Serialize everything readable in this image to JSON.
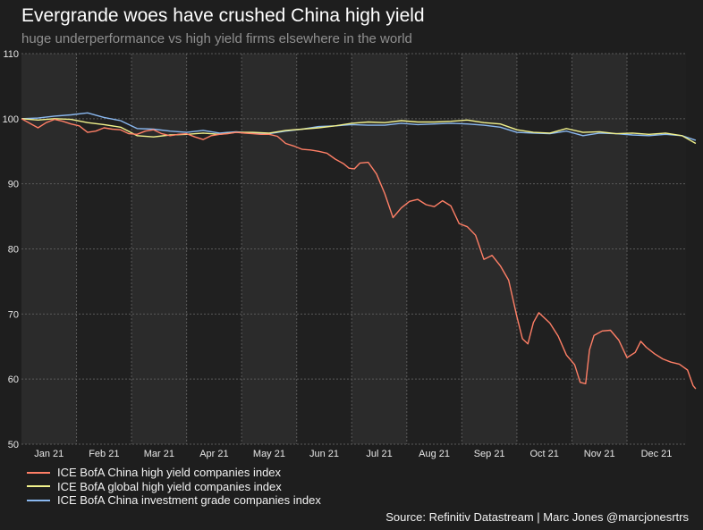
{
  "header": {
    "title": "Evergrande woes have crushed China high yield",
    "subtitle": "huge underperformance vs high yield firms elsewhere in the world"
  },
  "source": "Source: Refinitiv Datastream | Marc Jones @marcjonesrtrs",
  "colors": {
    "background": "#1e1e1e",
    "plot_band_a": "#2b2b2b",
    "plot_band_b": "#202020",
    "grid": "#5a5a5a"
  },
  "chart_data": {
    "type": "line",
    "title": "Evergrande woes have crushed China high yield",
    "subtitle": "huge underperformance vs high yield firms elsewhere in the world",
    "xlabel": "",
    "ylabel": "",
    "ylim": [
      50,
      110
    ],
    "yticks": [
      50,
      60,
      70,
      80,
      90,
      100,
      110
    ],
    "xlim": [
      0,
      12
    ],
    "month_labels": [
      "Jan 21",
      "Feb 21",
      "Mar 21",
      "Apr 21",
      "May 21",
      "Jun 21",
      "Jul 21",
      "Aug 21",
      "Sep 21",
      "Oct 21",
      "Nov 21",
      "Dec 21"
    ],
    "grid": true,
    "legend_position": "bottom-left",
    "x_note": "x values are months elapsed since start of Jan 2021",
    "series": [
      {
        "name": "ICE BofA China high yield companies index",
        "color": "#ff7f66",
        "points": [
          [
            0,
            100
          ],
          [
            0.15,
            99.3
          ],
          [
            0.3,
            98.6
          ],
          [
            0.45,
            99.4
          ],
          [
            0.6,
            99.9
          ],
          [
            0.75,
            99.6
          ],
          [
            0.9,
            99.2
          ],
          [
            1.05,
            98.9
          ],
          [
            1.2,
            97.9
          ],
          [
            1.35,
            98.1
          ],
          [
            1.5,
            98.6
          ],
          [
            1.65,
            98.4
          ],
          [
            1.8,
            98.3
          ],
          [
            1.95,
            97.7
          ],
          [
            2.1,
            97.6
          ],
          [
            2.25,
            98.1
          ],
          [
            2.4,
            98.3
          ],
          [
            2.55,
            97.7
          ],
          [
            2.7,
            97.4
          ],
          [
            2.85,
            97.6
          ],
          [
            3.0,
            97.7
          ],
          [
            3.15,
            97.2
          ],
          [
            3.3,
            96.8
          ],
          [
            3.45,
            97.4
          ],
          [
            3.6,
            97.6
          ],
          [
            3.75,
            97.7
          ],
          [
            3.9,
            97.9
          ],
          [
            4.05,
            97.8
          ],
          [
            4.2,
            97.7
          ],
          [
            4.35,
            97.6
          ],
          [
            4.5,
            97.6
          ],
          [
            4.65,
            97.3
          ],
          [
            4.8,
            96.2
          ],
          [
            4.95,
            95.8
          ],
          [
            5.1,
            95.3
          ],
          [
            5.25,
            95.2
          ],
          [
            5.4,
            95.0
          ],
          [
            5.55,
            94.7
          ],
          [
            5.7,
            93.8
          ],
          [
            5.85,
            93.1
          ],
          [
            5.95,
            92.4
          ],
          [
            6.05,
            92.3
          ],
          [
            6.15,
            93.2
          ],
          [
            6.3,
            93.3
          ],
          [
            6.45,
            91.5
          ],
          [
            6.6,
            88.5
          ],
          [
            6.75,
            84.8
          ],
          [
            6.9,
            86.3
          ],
          [
            7.05,
            87.3
          ],
          [
            7.2,
            87.6
          ],
          [
            7.35,
            86.8
          ],
          [
            7.5,
            86.5
          ],
          [
            7.65,
            87.4
          ],
          [
            7.8,
            86.6
          ],
          [
            7.95,
            83.9
          ],
          [
            8.1,
            83.4
          ],
          [
            8.25,
            82.1
          ],
          [
            8.4,
            78.4
          ],
          [
            8.55,
            79.0
          ],
          [
            8.7,
            77.4
          ],
          [
            8.85,
            75.2
          ],
          [
            9.0,
            69.6
          ],
          [
            9.1,
            66.2
          ],
          [
            9.2,
            65.4
          ],
          [
            9.3,
            68.7
          ],
          [
            9.4,
            70.2
          ],
          [
            9.5,
            69.4
          ],
          [
            9.6,
            68.6
          ],
          [
            9.75,
            66.6
          ],
          [
            9.9,
            63.7
          ],
          [
            10.05,
            62.2
          ],
          [
            10.15,
            59.5
          ],
          [
            10.25,
            59.3
          ],
          [
            10.32,
            64.5
          ],
          [
            10.4,
            66.7
          ],
          [
            10.55,
            67.4
          ],
          [
            10.7,
            67.5
          ],
          [
            10.85,
            66.0
          ],
          [
            11.0,
            63.3
          ],
          [
            11.15,
            64.1
          ],
          [
            11.25,
            65.8
          ],
          [
            11.35,
            64.9
          ],
          [
            11.5,
            63.9
          ],
          [
            11.65,
            63.1
          ],
          [
            11.8,
            62.6
          ],
          [
            11.95,
            62.3
          ],
          [
            12.1,
            61.4
          ],
          [
            12.2,
            59.0
          ],
          [
            12.25,
            58.5
          ]
        ]
      },
      {
        "name": "ICE BofA global high yield companies index",
        "color": "#f2f28c",
        "points": [
          [
            0,
            100
          ],
          [
            0.3,
            99.8
          ],
          [
            0.6,
            100.0
          ],
          [
            0.9,
            99.9
          ],
          [
            1.2,
            99.4
          ],
          [
            1.5,
            99.1
          ],
          [
            1.8,
            98.7
          ],
          [
            2.1,
            97.4
          ],
          [
            2.4,
            97.2
          ],
          [
            2.7,
            97.5
          ],
          [
            3.0,
            97.6
          ],
          [
            3.3,
            97.8
          ],
          [
            3.6,
            97.6
          ],
          [
            3.9,
            97.9
          ],
          [
            4.2,
            97.9
          ],
          [
            4.5,
            97.8
          ],
          [
            4.8,
            98.2
          ],
          [
            5.1,
            98.4
          ],
          [
            5.4,
            98.6
          ],
          [
            5.7,
            98.9
          ],
          [
            6.0,
            99.3
          ],
          [
            6.3,
            99.5
          ],
          [
            6.6,
            99.4
          ],
          [
            6.9,
            99.7
          ],
          [
            7.2,
            99.5
          ],
          [
            7.5,
            99.5
          ],
          [
            7.8,
            99.6
          ],
          [
            8.1,
            99.8
          ],
          [
            8.4,
            99.4
          ],
          [
            8.7,
            99.2
          ],
          [
            9.0,
            98.3
          ],
          [
            9.3,
            97.9
          ],
          [
            9.6,
            97.8
          ],
          [
            9.9,
            98.5
          ],
          [
            10.2,
            97.9
          ],
          [
            10.5,
            98.0
          ],
          [
            10.8,
            97.7
          ],
          [
            11.1,
            97.8
          ],
          [
            11.4,
            97.6
          ],
          [
            11.7,
            97.8
          ],
          [
            12.0,
            97.4
          ],
          [
            12.25,
            96.2
          ]
        ]
      },
      {
        "name": "ICE BofA China investment grade companies index",
        "color": "#8ab8f0",
        "points": [
          [
            0,
            100
          ],
          [
            0.3,
            100.1
          ],
          [
            0.6,
            100.4
          ],
          [
            0.9,
            100.6
          ],
          [
            1.2,
            100.9
          ],
          [
            1.5,
            100.2
          ],
          [
            1.8,
            99.7
          ],
          [
            2.1,
            98.5
          ],
          [
            2.4,
            98.4
          ],
          [
            2.7,
            98.1
          ],
          [
            3.0,
            97.9
          ],
          [
            3.3,
            98.2
          ],
          [
            3.6,
            97.8
          ],
          [
            3.9,
            98.0
          ],
          [
            4.2,
            97.8
          ],
          [
            4.5,
            97.7
          ],
          [
            4.8,
            98.1
          ],
          [
            5.1,
            98.4
          ],
          [
            5.4,
            98.8
          ],
          [
            5.7,
            98.9
          ],
          [
            6.0,
            99.1
          ],
          [
            6.3,
            99.0
          ],
          [
            6.6,
            99.0
          ],
          [
            6.9,
            99.3
          ],
          [
            7.2,
            99.1
          ],
          [
            7.5,
            99.2
          ],
          [
            7.8,
            99.3
          ],
          [
            8.1,
            99.2
          ],
          [
            8.4,
            99.0
          ],
          [
            8.7,
            98.7
          ],
          [
            9.0,
            97.9
          ],
          [
            9.3,
            97.8
          ],
          [
            9.6,
            97.7
          ],
          [
            9.9,
            98.1
          ],
          [
            10.2,
            97.4
          ],
          [
            10.5,
            97.8
          ],
          [
            10.8,
            97.7
          ],
          [
            11.1,
            97.5
          ],
          [
            11.4,
            97.4
          ],
          [
            11.7,
            97.6
          ],
          [
            12.0,
            97.4
          ],
          [
            12.25,
            96.7
          ]
        ]
      }
    ]
  }
}
